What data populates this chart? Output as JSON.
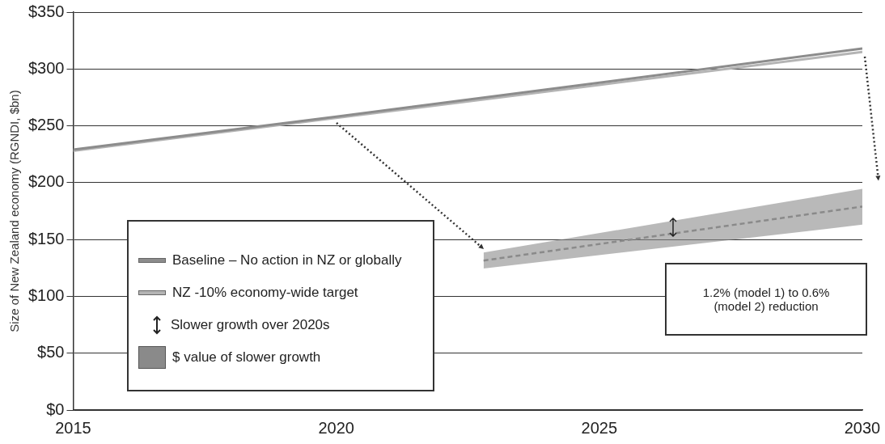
{
  "chart_data": {
    "type": "line",
    "ylabel": "Size of New Zealand economy (RGNDI, $bn)",
    "x": [
      2015,
      2020,
      2025,
      2030
    ],
    "xlim": [
      2015,
      2030
    ],
    "xticks": [
      2015,
      2020,
      2025,
      2030
    ],
    "ylim": [
      0,
      350
    ],
    "yticks": [
      {
        "value": 0,
        "label": "$0"
      },
      {
        "value": 50,
        "label": "$50"
      },
      {
        "value": 100,
        "label": "$100"
      },
      {
        "value": 150,
        "label": "$150"
      },
      {
        "value": 200,
        "label": "$200"
      },
      {
        "value": 250,
        "label": "$250"
      },
      {
        "value": 300,
        "label": "$300"
      },
      {
        "value": 350,
        "label": "$350"
      }
    ],
    "grid": "y",
    "legend": "bottom left",
    "marker": "none",
    "series": [
      {
        "name": "Baseline – No action in NZ or globally",
        "color": "#8c8c8c",
        "values": [
          229,
          258,
          288,
          318
        ]
      },
      {
        "name": "NZ -10% economy-wide target",
        "color": "#b4b4b4",
        "values": [
          228,
          257,
          286,
          315
        ]
      },
      {
        "name": "$ value of slower growth",
        "color": "#8a8a8a",
        "x": [
          2022.8,
          2030
        ],
        "values": [
          131.5,
          179
        ],
        "lower": [
          124.5,
          163
        ],
        "upper": [
          138.5,
          194.5
        ],
        "line_style": "dashed"
      }
    ],
    "annotations": [
      "Slower growth over 2020s",
      "1.2% (model 1) to 0.6% (model 2) reduction"
    ]
  }
}
